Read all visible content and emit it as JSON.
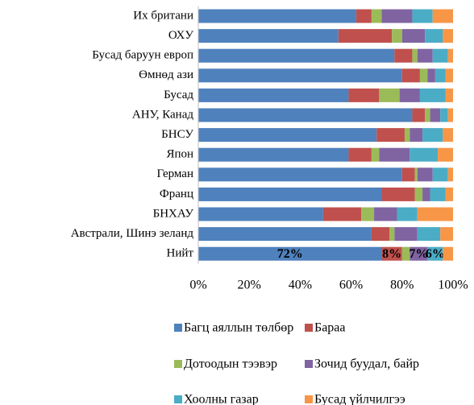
{
  "chart_data": {
    "type": "stacked-bar-horizontal",
    "categories": [
      "Их британи",
      "ОХУ",
      "Бусад баруун европ",
      "Өмнөд ази",
      "Бусад",
      "АНУ, Канад",
      "БНСУ",
      "Япон",
      "Герман",
      "Франц",
      "БНХАУ",
      "Австрали, Шинэ зеланд",
      "Нийт"
    ],
    "series": [
      {
        "name": "Багц аяллын төлбөр",
        "color": "#4f81bd",
        "values": [
          62,
          55,
          77,
          80,
          59,
          84,
          70,
          59,
          80,
          72,
          49,
          68,
          72
        ],
        "value_labels": [
          null,
          null,
          null,
          null,
          null,
          null,
          null,
          null,
          null,
          null,
          null,
          null,
          "72%"
        ]
      },
      {
        "name": "Бараа",
        "color": "#c0504d",
        "values": [
          6,
          21,
          7,
          7,
          12,
          5,
          11,
          9,
          5,
          13,
          15,
          7,
          8
        ],
        "value_labels": [
          null,
          null,
          null,
          null,
          null,
          null,
          null,
          null,
          null,
          null,
          null,
          null,
          "8%"
        ]
      },
      {
        "name": "Дотоодын тээвэр",
        "color": "#9bbb59",
        "values": [
          4,
          4,
          2,
          3,
          8,
          2,
          2,
          3,
          1,
          3,
          5,
          2,
          3
        ]
      },
      {
        "name": "Зочид буудал, байр",
        "color": "#8064a2",
        "values": [
          12,
          9,
          6,
          3,
          8,
          4,
          5,
          12,
          6,
          3,
          9,
          9,
          7
        ],
        "value_labels": [
          null,
          null,
          null,
          null,
          null,
          null,
          null,
          null,
          null,
          null,
          null,
          null,
          "7%"
        ]
      },
      {
        "name": "Хоолны газар",
        "color": "#4bacc6",
        "values": [
          8,
          7,
          6,
          4,
          10,
          3,
          8,
          11,
          6,
          6,
          8,
          9,
          6
        ],
        "value_labels": [
          null,
          null,
          null,
          null,
          null,
          null,
          null,
          null,
          null,
          null,
          null,
          null,
          "6%"
        ]
      },
      {
        "name": "Бусад үйлчилгээ",
        "color": "#f79646",
        "values": [
          8,
          4,
          2,
          3,
          3,
          2,
          4,
          6,
          2,
          3,
          14,
          5,
          4
        ]
      }
    ],
    "xlim": [
      0,
      100
    ],
    "xticks": [
      {
        "value": 0,
        "label": "0%"
      },
      {
        "value": 20,
        "label": "20%"
      },
      {
        "value": 40,
        "label": "40%"
      },
      {
        "value": 60,
        "label": "60%"
      },
      {
        "value": 80,
        "label": "80%"
      },
      {
        "value": 100,
        "label": "100%"
      }
    ],
    "grid": false
  }
}
